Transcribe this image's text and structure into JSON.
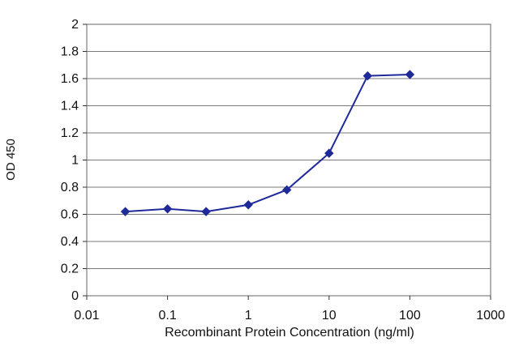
{
  "chart_data": {
    "type": "line",
    "x_scale": "log",
    "xlabel": "Recombinant Protein Concentration (ng/ml)",
    "ylabel": "OD 450",
    "xlim": [
      0.01,
      1000
    ],
    "ylim": [
      0,
      2
    ],
    "x_ticks": [
      "0.01",
      "0.1",
      "1",
      "10",
      "100",
      "1000"
    ],
    "x_tick_values": [
      0.01,
      0.1,
      1,
      10,
      100,
      1000
    ],
    "y_ticks": [
      "0",
      "0.2",
      "0.4",
      "0.6",
      "0.8",
      "1",
      "1.2",
      "1.4",
      "1.6",
      "1.8",
      "2"
    ],
    "y_tick_values": [
      0,
      0.2,
      0.4,
      0.6,
      0.8,
      1,
      1.2,
      1.4,
      1.6,
      1.8,
      2
    ],
    "grid": "horizontal",
    "series_color": "#1f2a9a",
    "series": [
      {
        "x": [
          0.03,
          0.1,
          0.3,
          1,
          3,
          10,
          30,
          100
        ],
        "y": [
          0.62,
          0.64,
          0.62,
          0.67,
          0.78,
          1.05,
          1.62,
          1.63
        ]
      }
    ]
  }
}
